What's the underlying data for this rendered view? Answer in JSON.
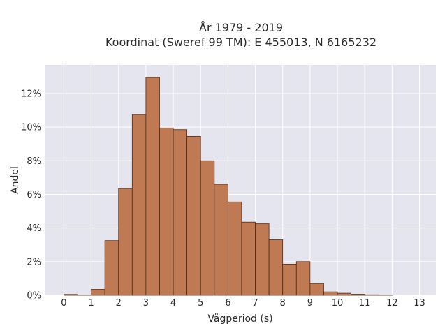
{
  "chart_data": {
    "type": "bar",
    "title_lines": [
      "År 1979 - 2019",
      "Koordinat (Sweref 99 TM): E 455013, N 6165232"
    ],
    "xlabel": "Vågperiod (s)",
    "ylabel": "Andel",
    "bin_width": 0.5,
    "bins": [
      {
        "x": 0.0,
        "value": 0.05
      },
      {
        "x": 0.5,
        "value": 0.0
      },
      {
        "x": 1.0,
        "value": 0.35
      },
      {
        "x": 1.5,
        "value": 3.25
      },
      {
        "x": 2.0,
        "value": 6.35
      },
      {
        "x": 2.5,
        "value": 10.75
      },
      {
        "x": 3.0,
        "value": 12.95
      },
      {
        "x": 3.5,
        "value": 9.95
      },
      {
        "x": 4.0,
        "value": 9.85
      },
      {
        "x": 4.5,
        "value": 9.45
      },
      {
        "x": 5.0,
        "value": 8.0
      },
      {
        "x": 5.5,
        "value": 6.6
      },
      {
        "x": 6.0,
        "value": 5.55
      },
      {
        "x": 6.5,
        "value": 4.35
      },
      {
        "x": 7.0,
        "value": 4.25
      },
      {
        "x": 7.5,
        "value": 3.3
      },
      {
        "x": 8.0,
        "value": 1.85
      },
      {
        "x": 8.5,
        "value": 2.0
      },
      {
        "x": 9.0,
        "value": 0.7
      },
      {
        "x": 9.5,
        "value": 0.2
      },
      {
        "x": 10.0,
        "value": 0.12
      },
      {
        "x": 10.5,
        "value": 0.06
      },
      {
        "x": 11.0,
        "value": 0.03
      },
      {
        "x": 11.5,
        "value": 0.02
      }
    ],
    "x_ticks": [
      0,
      1,
      2,
      3,
      4,
      5,
      6,
      7,
      8,
      9,
      10,
      11,
      12,
      13
    ],
    "y_ticks": [
      {
        "value": 0,
        "label": "0%"
      },
      {
        "value": 2,
        "label": "2%"
      },
      {
        "value": 4,
        "label": "4%"
      },
      {
        "value": 6,
        "label": "6%"
      },
      {
        "value": 8,
        "label": "8%"
      },
      {
        "value": 10,
        "label": "10%"
      },
      {
        "value": 12,
        "label": "12%"
      }
    ],
    "xlim": [
      -0.7,
      13.6
    ],
    "ylim": [
      0,
      13.7
    ],
    "grid": true,
    "colors": {
      "bar_fill": "#bf7a54",
      "bar_edge": "#4a2a18",
      "plot_bg": "#e5e5ef",
      "grid": "#ffffff"
    }
  }
}
